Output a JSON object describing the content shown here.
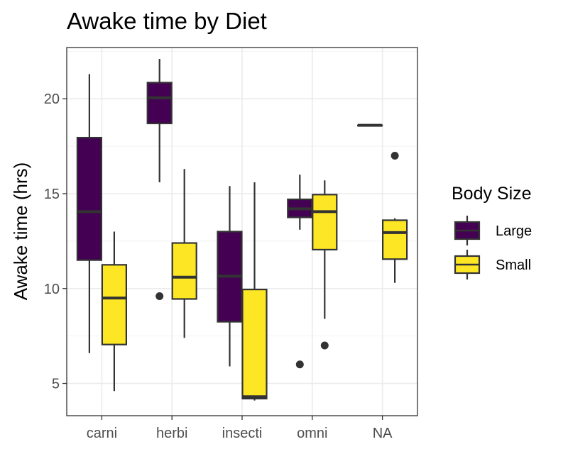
{
  "chart_data": {
    "type": "boxplot",
    "title": "Awake time by Diet",
    "xlabel": "",
    "ylabel": "Awake time (hrs)",
    "ylim": [
      3.3,
      22.7
    ],
    "yticks": [
      5,
      10,
      15,
      20
    ],
    "grid": true,
    "categories": [
      "carni",
      "herbi",
      "insecti",
      "omni",
      "NA"
    ],
    "legend": {
      "title": "Body Size",
      "position": "right"
    },
    "series": [
      {
        "name": "Large",
        "color": "#440154",
        "boxes": [
          {
            "category": "carni",
            "whisker_low": 6.6,
            "q1": 11.5,
            "median": 14.05,
            "q3": 17.95,
            "whisker_high": 21.3,
            "outliers": []
          },
          {
            "category": "herbi",
            "whisker_low": 15.6,
            "q1": 18.7,
            "median": 20.05,
            "q3": 20.85,
            "whisker_high": 22.1,
            "outliers": [
              9.6
            ]
          },
          {
            "category": "insecti",
            "whisker_low": 5.9,
            "q1": 8.25,
            "median": 10.65,
            "q3": 13.0,
            "whisker_high": 15.4,
            "outliers": []
          },
          {
            "category": "omni",
            "whisker_low": 13.1,
            "q1": 13.75,
            "median": 14.2,
            "q3": 14.7,
            "whisker_high": 16.0,
            "outliers": [
              6.0
            ]
          },
          {
            "category": "NA",
            "whisker_low": 18.6,
            "q1": 18.6,
            "median": 18.6,
            "q3": 18.6,
            "whisker_high": 18.6,
            "outliers": []
          }
        ]
      },
      {
        "name": "Small",
        "color": "#fde725",
        "boxes": [
          {
            "category": "carni",
            "whisker_low": 4.6,
            "q1": 7.05,
            "median": 9.5,
            "q3": 11.25,
            "whisker_high": 13.0,
            "outliers": []
          },
          {
            "category": "herbi",
            "whisker_low": 7.4,
            "q1": 9.45,
            "median": 10.6,
            "q3": 12.4,
            "whisker_high": 16.3,
            "outliers": []
          },
          {
            "category": "insecti",
            "whisker_low": 4.1,
            "q1": 4.2,
            "median": 4.3,
            "q3": 9.95,
            "whisker_high": 15.6,
            "outliers": []
          },
          {
            "category": "omni",
            "whisker_low": 8.4,
            "q1": 12.05,
            "median": 14.05,
            "q3": 14.95,
            "whisker_high": 15.7,
            "outliers": [
              7.0
            ]
          },
          {
            "category": "NA",
            "whisker_low": 10.3,
            "q1": 11.55,
            "median": 12.95,
            "q3": 13.6,
            "whisker_high": 13.7,
            "outliers": [
              17.0
            ]
          }
        ]
      }
    ]
  }
}
